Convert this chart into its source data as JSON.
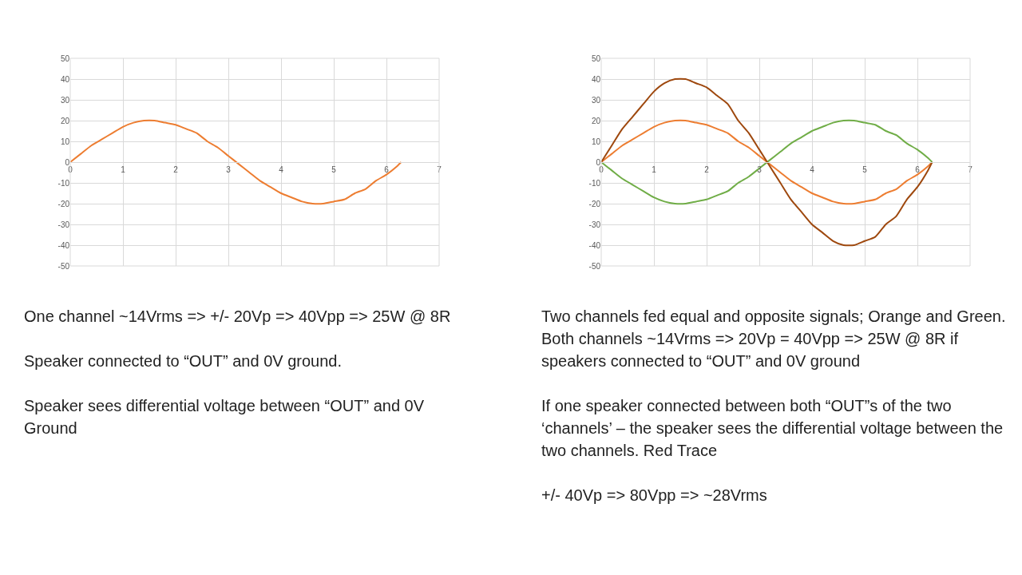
{
  "chart_data": [
    {
      "type": "line",
      "x": [
        0,
        0.2,
        0.4,
        0.6,
        0.8,
        1.0,
        1.2,
        1.4,
        1.6,
        1.8,
        2.0,
        2.2,
        2.4,
        2.6,
        2.8,
        3.0,
        3.2,
        3.4,
        3.6,
        3.8,
        4.0,
        4.2,
        4.4,
        4.6,
        4.8,
        5.0,
        5.2,
        5.4,
        5.6,
        5.8,
        6.0,
        6.2,
        6.28
      ],
      "series": [
        {
          "color": "#ed7d31",
          "values": [
            0,
            4,
            8,
            11,
            14,
            17,
            19,
            20,
            20,
            19,
            18,
            16,
            14,
            10,
            7,
            3,
            -1,
            -5,
            -9,
            -12,
            -15,
            -17,
            -19,
            -20,
            -20,
            -19,
            -18,
            -15,
            -13,
            -9,
            -6,
            -2,
            0
          ]
        }
      ],
      "xlim": [
        0,
        7
      ],
      "xticks": [
        0,
        1,
        2,
        3,
        4,
        5,
        6,
        7
      ],
      "ylim": [
        -50,
        50
      ],
      "yticks": [
        -50,
        -40,
        -30,
        -20,
        -10,
        0,
        10,
        20,
        30,
        40,
        50
      ],
      "grid": true,
      "marker": "none",
      "line_style": "solid",
      "annotations": [
        "One channel ~14Vrms => +/- 20Vp => 40Vpp =>  25W @ 8R",
        "Speaker connected to “OUT” and 0V ground.",
        "Speaker sees differential voltage between “OUT” and 0V Ground"
      ]
    },
    {
      "type": "line",
      "x": [
        0,
        0.2,
        0.4,
        0.6,
        0.8,
        1.0,
        1.2,
        1.4,
        1.6,
        1.8,
        2.0,
        2.2,
        2.4,
        2.6,
        2.8,
        3.0,
        3.2,
        3.4,
        3.6,
        3.8,
        4.0,
        4.2,
        4.4,
        4.6,
        4.8,
        5.0,
        5.2,
        5.4,
        5.6,
        5.8,
        6.0,
        6.2,
        6.28
      ],
      "series": [
        {
          "color": "#ed7d31",
          "values": [
            0,
            4,
            8,
            11,
            14,
            17,
            19,
            20,
            20,
            19,
            18,
            16,
            14,
            10,
            7,
            3,
            -1,
            -5,
            -9,
            -12,
            -15,
            -17,
            -19,
            -20,
            -20,
            -19,
            -18,
            -15,
            -13,
            -9,
            -6,
            -2,
            0
          ]
        },
        {
          "color": "#70ad47",
          "values": [
            0,
            -4,
            -8,
            -11,
            -14,
            -17,
            -19,
            -20,
            -20,
            -19,
            -18,
            -16,
            -14,
            -10,
            -7,
            -3,
            1,
            5,
            9,
            12,
            15,
            17,
            19,
            20,
            20,
            19,
            18,
            15,
            13,
            9,
            6,
            2,
            0
          ]
        },
        {
          "color": "#9e480e",
          "values": [
            0,
            8,
            16,
            22,
            28,
            34,
            38,
            40,
            40,
            38,
            36,
            32,
            28,
            20,
            14,
            6,
            -2,
            -10,
            -18,
            -24,
            -30,
            -34,
            -38,
            -40,
            -40,
            -38,
            -36,
            -30,
            -26,
            -18,
            -12,
            -4,
            0
          ]
        }
      ],
      "xlim": [
        0,
        7
      ],
      "xticks": [
        0,
        1,
        2,
        3,
        4,
        5,
        6,
        7
      ],
      "ylim": [
        -50,
        50
      ],
      "yticks": [
        -50,
        -40,
        -30,
        -20,
        -10,
        0,
        10,
        20,
        30,
        40,
        50
      ],
      "grid": true,
      "marker": "none",
      "line_style": "solid",
      "annotations": [
        "Two channels fed equal and opposite signals; Orange and Green.  Both channels ~14Vrms => 20Vp = 40Vpp =>  25W @ 8R if speakers connected to “OUT” and 0V ground",
        "If one speaker connected between both “OUT”s of the two ‘channels’ – the speaker sees the differential voltage between the two channels.  Red Trace",
        "+/- 40Vp => 80Vpp => ~28Vrms"
      ]
    }
  ]
}
